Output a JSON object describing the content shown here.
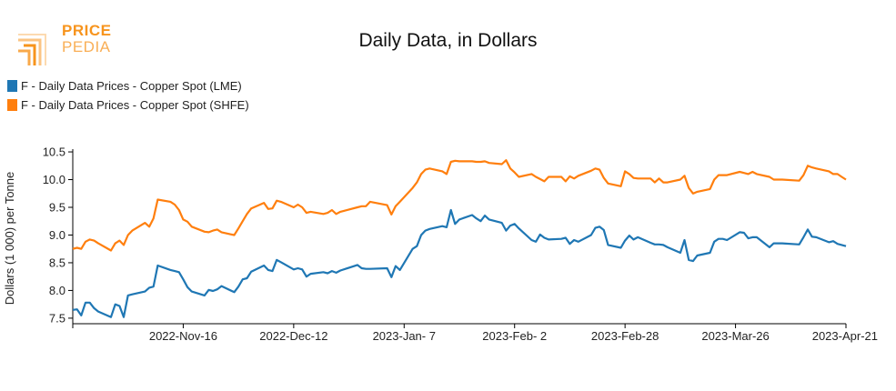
{
  "logo": {
    "line1": "PRICE",
    "line2": "PEDIA"
  },
  "colors": {
    "lme": "#1f77b4",
    "shfe": "#ff7f0e",
    "logo": "#f7941d"
  },
  "chart_data": {
    "type": "line",
    "title": "Daily Data, in Dollars",
    "xlabel": "",
    "ylabel": "Dollars (1 000) per Tonne",
    "ylim": [
      7.4,
      10.55
    ],
    "xlim": [
      "2022-10-21",
      "2023-04-21"
    ],
    "yticks": [
      7.5,
      8.0,
      8.5,
      9.0,
      9.5,
      10.0,
      10.5
    ],
    "ytick_labels": [
      "7.5",
      "8.0",
      "8.5",
      "9.0",
      "9.5",
      "10.0",
      "10.5"
    ],
    "xticks": [
      "2022-11-16",
      "2022-12-12",
      "2023-01-07",
      "2023-02-02",
      "2023-02-28",
      "2023-03-26",
      "2023-04-21"
    ],
    "xtick_labels": [
      "2022-Nov-16",
      "2022-Dec-12",
      "2023-Jan- 7",
      "2023-Feb- 2",
      "2023-Feb-28",
      "2023-Mar-26",
      "2023-Apr-21"
    ],
    "grid": false,
    "legend_position": "top-left",
    "series": [
      {
        "name": "F - Daily Data Prices - Copper Spot (LME)",
        "color": "#1f77b4",
        "x": [
          "2022-10-21",
          "2022-10-22",
          "2022-10-23",
          "2022-10-24",
          "2022-10-25",
          "2022-10-26",
          "2022-10-27",
          "2022-10-30",
          "2022-10-31",
          "2022-11-01",
          "2022-11-02",
          "2022-11-03",
          "2022-11-04",
          "2022-11-07",
          "2022-11-08",
          "2022-11-09",
          "2022-11-10",
          "2022-11-13",
          "2022-11-14",
          "2022-11-15",
          "2022-11-16",
          "2022-11-17",
          "2022-11-18",
          "2022-11-21",
          "2022-11-22",
          "2022-11-23",
          "2022-11-24",
          "2022-11-25",
          "2022-11-28",
          "2022-11-29",
          "2022-11-30",
          "2022-12-01",
          "2022-12-02",
          "2022-12-05",
          "2022-12-06",
          "2022-12-07",
          "2022-12-08",
          "2022-12-09",
          "2022-12-12",
          "2022-12-13",
          "2022-12-14",
          "2022-12-15",
          "2022-12-16",
          "2022-12-19",
          "2022-12-20",
          "2022-12-21",
          "2022-12-22",
          "2022-12-23",
          "2022-12-27",
          "2022-12-28",
          "2022-12-29",
          "2022-12-30",
          "2023-01-03",
          "2023-01-04",
          "2023-01-05",
          "2023-01-06",
          "2023-01-09",
          "2023-01-10",
          "2023-01-11",
          "2023-01-12",
          "2023-01-13",
          "2023-01-16",
          "2023-01-17",
          "2023-01-18",
          "2023-01-19",
          "2023-01-20",
          "2023-01-23",
          "2023-01-24",
          "2023-01-25",
          "2023-01-26",
          "2023-01-27",
          "2023-01-30",
          "2023-01-31",
          "2023-02-01",
          "2023-02-02",
          "2023-02-03",
          "2023-02-06",
          "2023-02-07",
          "2023-02-08",
          "2023-02-09",
          "2023-02-10",
          "2023-02-13",
          "2023-02-14",
          "2023-02-15",
          "2023-02-16",
          "2023-02-17",
          "2023-02-20",
          "2023-02-21",
          "2023-02-22",
          "2023-02-23",
          "2023-02-24",
          "2023-02-27",
          "2023-02-28",
          "2023-03-01",
          "2023-03-02",
          "2023-03-03",
          "2023-03-06",
          "2023-03-07",
          "2023-03-08",
          "2023-03-09",
          "2023-03-10",
          "2023-03-13",
          "2023-03-14",
          "2023-03-15",
          "2023-03-16",
          "2023-03-17",
          "2023-03-20",
          "2023-03-21",
          "2023-03-22",
          "2023-03-23",
          "2023-03-24",
          "2023-03-27",
          "2023-03-28",
          "2023-03-29",
          "2023-03-30",
          "2023-03-31",
          "2023-04-03",
          "2023-04-04",
          "2023-04-05",
          "2023-04-06",
          "2023-04-10",
          "2023-04-11",
          "2023-04-12",
          "2023-04-13",
          "2023-04-14",
          "2023-04-17",
          "2023-04-18",
          "2023-04-19",
          "2023-04-20",
          "2023-04-21"
        ],
        "y": [
          7.65,
          7.66,
          7.55,
          7.78,
          7.78,
          7.68,
          7.62,
          7.52,
          7.75,
          7.72,
          7.52,
          7.91,
          7.93,
          7.98,
          8.05,
          8.07,
          8.45,
          8.37,
          8.35,
          8.33,
          8.2,
          8.06,
          7.98,
          7.91,
          8.01,
          7.99,
          8.02,
          8.08,
          7.97,
          8.07,
          8.2,
          8.22,
          8.34,
          8.45,
          8.37,
          8.35,
          8.55,
          8.51,
          8.38,
          8.4,
          8.38,
          8.25,
          8.3,
          8.33,
          8.31,
          8.35,
          8.32,
          8.36,
          8.46,
          8.4,
          8.39,
          8.39,
          8.4,
          8.24,
          8.44,
          8.37,
          8.75,
          8.8,
          9.0,
          9.08,
          9.11,
          9.16,
          9.14,
          9.45,
          9.2,
          9.28,
          9.36,
          9.3,
          9.25,
          9.35,
          9.28,
          9.22,
          9.08,
          9.17,
          9.2,
          9.12,
          8.91,
          8.88,
          9.01,
          8.95,
          8.92,
          8.93,
          8.95,
          8.84,
          8.91,
          8.88,
          9.0,
          9.13,
          9.15,
          9.09,
          8.82,
          8.77,
          8.9,
          8.99,
          8.92,
          8.96,
          8.86,
          8.83,
          8.83,
          8.82,
          8.78,
          8.68,
          8.91,
          8.55,
          8.53,
          8.63,
          8.68,
          8.88,
          8.93,
          8.93,
          8.91,
          9.05,
          9.04,
          8.94,
          8.96,
          8.96,
          8.78,
          8.85,
          8.85,
          8.85,
          8.83,
          8.96,
          9.1,
          8.97,
          8.96,
          8.87,
          8.89,
          8.84,
          8.82,
          8.8
        ]
      },
      {
        "name": "F - Daily Data Prices - Copper Spot (SHFE)",
        "color": "#ff7f0e",
        "x": [
          "2022-10-21",
          "2022-10-22",
          "2022-10-23",
          "2022-10-24",
          "2022-10-25",
          "2022-10-26",
          "2022-10-27",
          "2022-10-30",
          "2022-10-31",
          "2022-11-01",
          "2022-11-02",
          "2022-11-03",
          "2022-11-04",
          "2022-11-07",
          "2022-11-08",
          "2022-11-09",
          "2022-11-10",
          "2022-11-13",
          "2022-11-14",
          "2022-11-15",
          "2022-11-16",
          "2022-11-17",
          "2022-11-18",
          "2022-11-21",
          "2022-11-22",
          "2022-11-23",
          "2022-11-24",
          "2022-11-25",
          "2022-11-28",
          "2022-11-29",
          "2022-11-30",
          "2022-12-01",
          "2022-12-02",
          "2022-12-05",
          "2022-12-06",
          "2022-12-07",
          "2022-12-08",
          "2022-12-09",
          "2022-12-12",
          "2022-12-13",
          "2022-12-14",
          "2022-12-15",
          "2022-12-16",
          "2022-12-19",
          "2022-12-20",
          "2022-12-21",
          "2022-12-22",
          "2022-12-23",
          "2022-12-27",
          "2022-12-28",
          "2022-12-29",
          "2022-12-30",
          "2023-01-03",
          "2023-01-04",
          "2023-01-05",
          "2023-01-06",
          "2023-01-09",
          "2023-01-10",
          "2023-01-11",
          "2023-01-12",
          "2023-01-13",
          "2023-01-16",
          "2023-01-17",
          "2023-01-18",
          "2023-01-19",
          "2023-01-20",
          "2023-01-23",
          "2023-01-24",
          "2023-01-25",
          "2023-01-26",
          "2023-01-27",
          "2023-01-30",
          "2023-01-31",
          "2023-02-01",
          "2023-02-02",
          "2023-02-03",
          "2023-02-06",
          "2023-02-07",
          "2023-02-08",
          "2023-02-09",
          "2023-02-10",
          "2023-02-13",
          "2023-02-14",
          "2023-02-15",
          "2023-02-16",
          "2023-02-17",
          "2023-02-20",
          "2023-02-21",
          "2023-02-22",
          "2023-02-23",
          "2023-02-24",
          "2023-02-27",
          "2023-02-28",
          "2023-03-01",
          "2023-03-02",
          "2023-03-03",
          "2023-03-06",
          "2023-03-07",
          "2023-03-08",
          "2023-03-09",
          "2023-03-10",
          "2023-03-13",
          "2023-03-14",
          "2023-03-15",
          "2023-03-16",
          "2023-03-17",
          "2023-03-20",
          "2023-03-21",
          "2023-03-22",
          "2023-03-23",
          "2023-03-24",
          "2023-03-27",
          "2023-03-28",
          "2023-03-29",
          "2023-03-30",
          "2023-03-31",
          "2023-04-03",
          "2023-04-04",
          "2023-04-05",
          "2023-04-06",
          "2023-04-10",
          "2023-04-11",
          "2023-04-12",
          "2023-04-13",
          "2023-04-14",
          "2023-04-17",
          "2023-04-18",
          "2023-04-19",
          "2023-04-20",
          "2023-04-21"
        ],
        "y": [
          8.75,
          8.77,
          8.75,
          8.88,
          8.92,
          8.9,
          8.85,
          8.72,
          8.85,
          8.9,
          8.82,
          9.0,
          9.08,
          9.22,
          9.15,
          9.3,
          9.64,
          9.6,
          9.55,
          9.45,
          9.28,
          9.24,
          9.15,
          9.06,
          9.05,
          9.08,
          9.1,
          9.05,
          9.0,
          9.12,
          9.25,
          9.38,
          9.48,
          9.58,
          9.47,
          9.48,
          9.62,
          9.6,
          9.5,
          9.55,
          9.5,
          9.4,
          9.42,
          9.38,
          9.4,
          9.45,
          9.38,
          9.42,
          9.5,
          9.52,
          9.52,
          9.6,
          9.54,
          9.37,
          9.52,
          9.6,
          9.85,
          9.95,
          10.1,
          10.18,
          10.2,
          10.15,
          10.1,
          10.32,
          10.34,
          10.33,
          10.33,
          10.32,
          10.32,
          10.33,
          10.3,
          10.28,
          10.35,
          10.2,
          10.13,
          10.05,
          10.1,
          10.05,
          10.01,
          9.97,
          10.05,
          10.05,
          9.97,
          10.06,
          10.02,
          10.07,
          10.16,
          10.2,
          10.18,
          10.03,
          9.93,
          9.88,
          10.15,
          10.1,
          10.03,
          10.02,
          10.02,
          9.95,
          10.02,
          9.95,
          9.95,
          10.0,
          10.07,
          9.85,
          9.75,
          9.78,
          9.83,
          10.0,
          10.08,
          10.08,
          10.08,
          10.14,
          10.12,
          10.1,
          10.14,
          10.1,
          10.05,
          10.0,
          10.0,
          10.0,
          9.98,
          10.08,
          10.25,
          10.22,
          10.2,
          10.15,
          10.1,
          10.1,
          10.05,
          10.0
        ]
      }
    ]
  }
}
